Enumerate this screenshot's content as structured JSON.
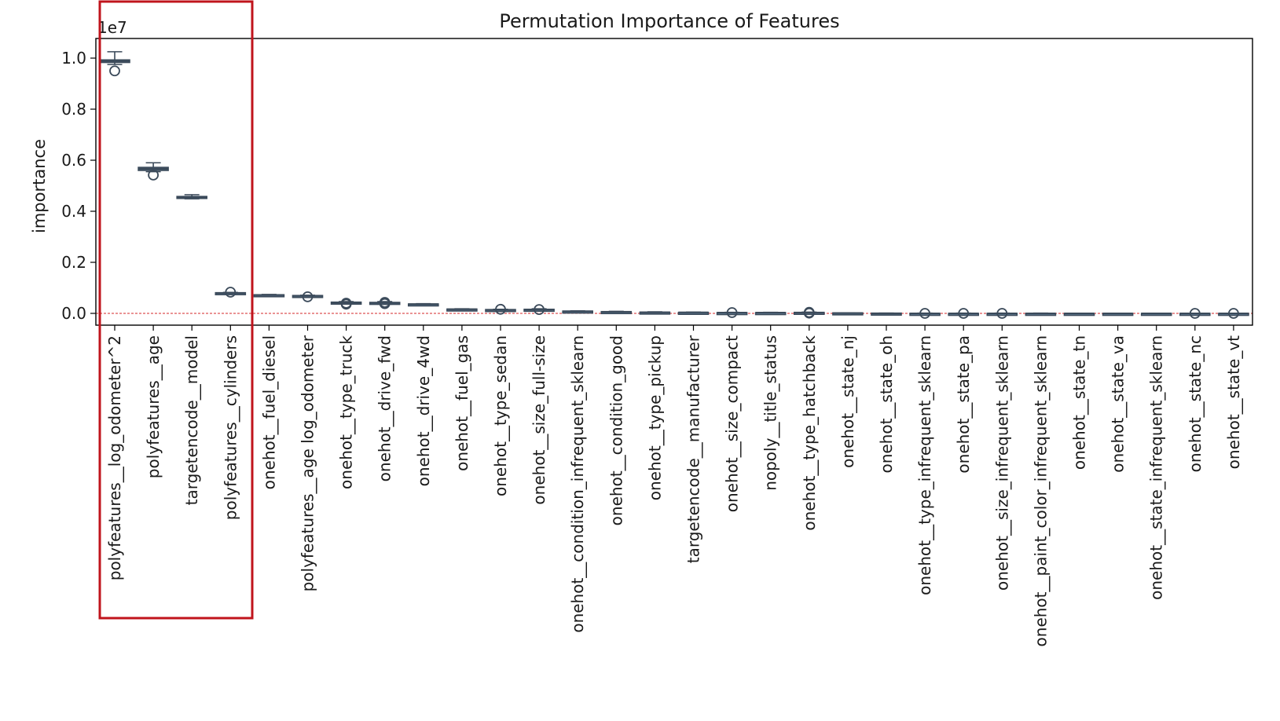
{
  "chart_data": {
    "type": "box",
    "title": "Permutation Importance of Features",
    "xlabel": "",
    "ylabel": "importance",
    "y_offset_label": "1e7",
    "ylim": [
      -0.05,
      1.08
    ],
    "yticks": [
      0.0,
      0.2,
      0.4,
      0.6,
      0.8,
      1.0
    ],
    "ytick_labels": [
      "0.0",
      "0.2",
      "0.4",
      "0.6",
      "0.8",
      "1.0"
    ],
    "reference_line": {
      "y": 0.0,
      "style": "dashed",
      "color": "#d62728"
    },
    "box_color": "#3b4a5a",
    "highlight_color": "#c0141c",
    "grid": false,
    "categories": [
      "polyfeatures__log_odometer^2",
      "polyfeatures__age",
      "targetencode__model",
      "polyfeatures__cylinders",
      "onehot__fuel_diesel",
      "polyfeatures__age log_odometer",
      "onehot__type_truck",
      "onehot__drive_fwd",
      "onehot__drive_4wd",
      "onehot__fuel_gas",
      "onehot__type_sedan",
      "onehot__size_full-size",
      "onehot__condition_infrequent_sklearn",
      "onehot__condition_good",
      "onehot__type_pickup",
      "targetencode__manufacturer",
      "onehot__size_compact",
      "nopoly__title_status",
      "onehot__type_hatchback",
      "onehot__state_nj",
      "onehot__state_oh",
      "onehot__type_infrequent_sklearn",
      "onehot__state_pa",
      "onehot__size_infrequent_sklearn",
      "onehot__paint_color_infrequent_sklearn",
      "onehot__state_tn",
      "onehot__state_va",
      "onehot__state_infrequent_sklearn",
      "onehot__state_nc",
      "onehot__state_vt"
    ],
    "boxes": [
      {
        "whislo": 0.975,
        "q1": 0.983,
        "med": 0.988,
        "q3": 0.993,
        "whishi": 1.025,
        "fliers": [
          0.95
        ]
      },
      {
        "whislo": 0.555,
        "q1": 0.56,
        "med": 0.566,
        "q3": 0.572,
        "whishi": 0.59,
        "fliers": [
          0.542
        ]
      },
      {
        "whislo": 0.449,
        "q1": 0.452,
        "med": 0.455,
        "q3": 0.458,
        "whishi": 0.465,
        "fliers": []
      },
      {
        "whislo": 0.078,
        "q1": 0.079,
        "med": 0.08,
        "q3": 0.081,
        "whishi": 0.082,
        "fliers": [
          0.083
        ]
      },
      {
        "whislo": 0.07,
        "q1": 0.071,
        "med": 0.072,
        "q3": 0.073,
        "whishi": 0.074,
        "fliers": []
      },
      {
        "whislo": 0.067,
        "q1": 0.068,
        "med": 0.069,
        "q3": 0.07,
        "whishi": 0.071,
        "fliers": [
          0.065
        ]
      },
      {
        "whislo": 0.038,
        "q1": 0.04,
        "med": 0.042,
        "q3": 0.044,
        "whishi": 0.046,
        "fliers": [
          0.04,
          0.036
        ]
      },
      {
        "whislo": 0.036,
        "q1": 0.039,
        "med": 0.041,
        "q3": 0.043,
        "whishi": 0.046,
        "fliers": [
          0.043,
          0.038
        ]
      },
      {
        "whislo": 0.034,
        "q1": 0.035,
        "med": 0.036,
        "q3": 0.037,
        "whishi": 0.038,
        "fliers": []
      },
      {
        "whislo": 0.014,
        "q1": 0.015,
        "med": 0.016,
        "q3": 0.017,
        "whishi": 0.018,
        "fliers": []
      },
      {
        "whislo": 0.012,
        "q1": 0.013,
        "med": 0.014,
        "q3": 0.015,
        "whishi": 0.016,
        "fliers": [
          0.016
        ]
      },
      {
        "whislo": 0.012,
        "q1": 0.014,
        "med": 0.015,
        "q3": 0.016,
        "whishi": 0.018,
        "fliers": [
          0.015
        ]
      },
      {
        "whislo": 0.006,
        "q1": 0.007,
        "med": 0.008,
        "q3": 0.009,
        "whishi": 0.01,
        "fliers": []
      },
      {
        "whislo": 0.004,
        "q1": 0.005,
        "med": 0.006,
        "q3": 0.007,
        "whishi": 0.008,
        "fliers": []
      },
      {
        "whislo": 0.003,
        "q1": 0.004,
        "med": 0.004,
        "q3": 0.005,
        "whishi": 0.006,
        "fliers": []
      },
      {
        "whislo": 0.003,
        "q1": 0.003,
        "med": 0.004,
        "q3": 0.004,
        "whishi": 0.005,
        "fliers": []
      },
      {
        "whislo": 0.002,
        "q1": 0.002,
        "med": 0.003,
        "q3": 0.003,
        "whishi": 0.004,
        "fliers": [
          0.003
        ]
      },
      {
        "whislo": 0.002,
        "q1": 0.002,
        "med": 0.003,
        "q3": 0.003,
        "whishi": 0.004,
        "fliers": []
      },
      {
        "whislo": 0.001,
        "q1": 0.002,
        "med": 0.003,
        "q3": 0.004,
        "whishi": 0.005,
        "fliers": [
          0.004,
          0.001
        ]
      },
      {
        "whislo": 0.0,
        "q1": 0.001,
        "med": 0.001,
        "q3": 0.002,
        "whishi": 0.002,
        "fliers": []
      },
      {
        "whislo": 0.0,
        "q1": 0.0,
        "med": 0.0,
        "q3": 0.001,
        "whishi": 0.001,
        "fliers": []
      },
      {
        "whislo": 0.0,
        "q1": 0.0,
        "med": 0.0,
        "q3": 0.0,
        "whishi": 0.001,
        "fliers": [
          0.0
        ]
      },
      {
        "whislo": 0.0,
        "q1": 0.0,
        "med": 0.0,
        "q3": 0.0,
        "whishi": 0.001,
        "fliers": [
          0.0
        ]
      },
      {
        "whislo": 0.0,
        "q1": 0.0,
        "med": 0.0,
        "q3": 0.0,
        "whishi": 0.001,
        "fliers": [
          0.0
        ]
      },
      {
        "whislo": 0.0,
        "q1": 0.0,
        "med": 0.0,
        "q3": 0.0,
        "whishi": 0.001,
        "fliers": []
      },
      {
        "whislo": 0.0,
        "q1": 0.0,
        "med": 0.0,
        "q3": 0.0,
        "whishi": 0.0,
        "fliers": []
      },
      {
        "whislo": 0.0,
        "q1": 0.0,
        "med": 0.0,
        "q3": 0.0,
        "whishi": 0.0,
        "fliers": []
      },
      {
        "whislo": 0.0,
        "q1": 0.0,
        "med": 0.0,
        "q3": 0.0,
        "whishi": 0.0,
        "fliers": []
      },
      {
        "whislo": 0.0,
        "q1": 0.0,
        "med": 0.0,
        "q3": 0.0,
        "whishi": 0.0,
        "fliers": [
          0.0
        ]
      },
      {
        "whislo": 0.0,
        "q1": 0.0,
        "med": 0.0,
        "q3": 0.0,
        "whishi": 0.0,
        "fliers": [
          0.0
        ]
      }
    ],
    "highlighted_categories": [
      0,
      1,
      2,
      3
    ]
  }
}
